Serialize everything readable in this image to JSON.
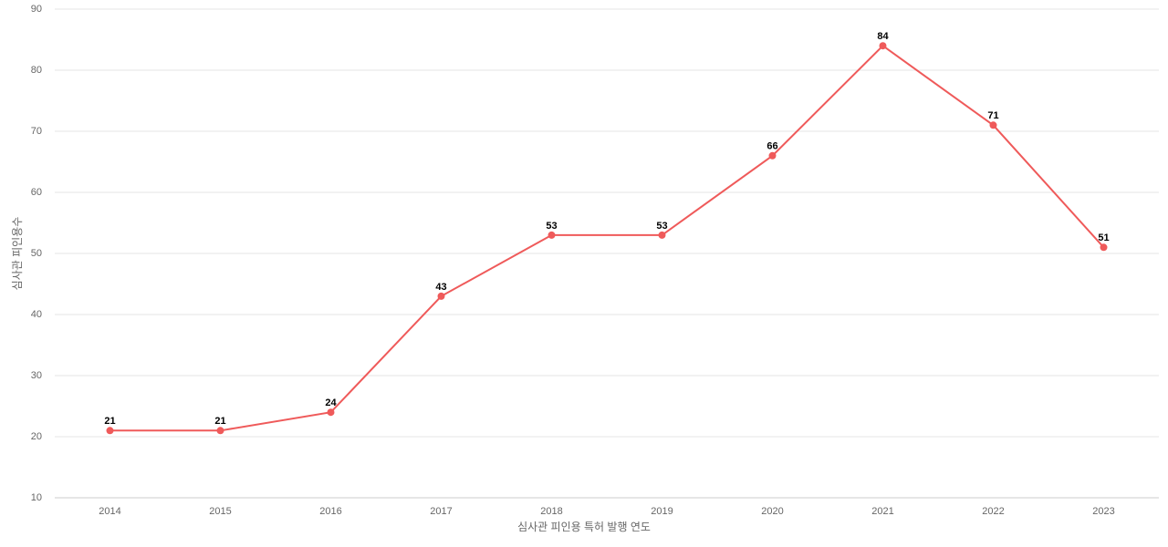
{
  "chart_data": {
    "type": "line",
    "categories": [
      "2014",
      "2015",
      "2016",
      "2017",
      "2018",
      "2019",
      "2020",
      "2021",
      "2022",
      "2023"
    ],
    "series": [
      {
        "name": "심사관 피인용수",
        "color": "#ef5a5a",
        "values": [
          21,
          21,
          24,
          43,
          53,
          53,
          66,
          84,
          71,
          51
        ]
      }
    ],
    "x_label": "심사관 피인용 특허 발행 연도",
    "y_label": "심사관 피인용수",
    "ylim": [
      10,
      90
    ],
    "yticks": [
      10,
      20,
      30,
      40,
      50,
      60,
      70,
      80,
      90
    ],
    "grid": true
  }
}
